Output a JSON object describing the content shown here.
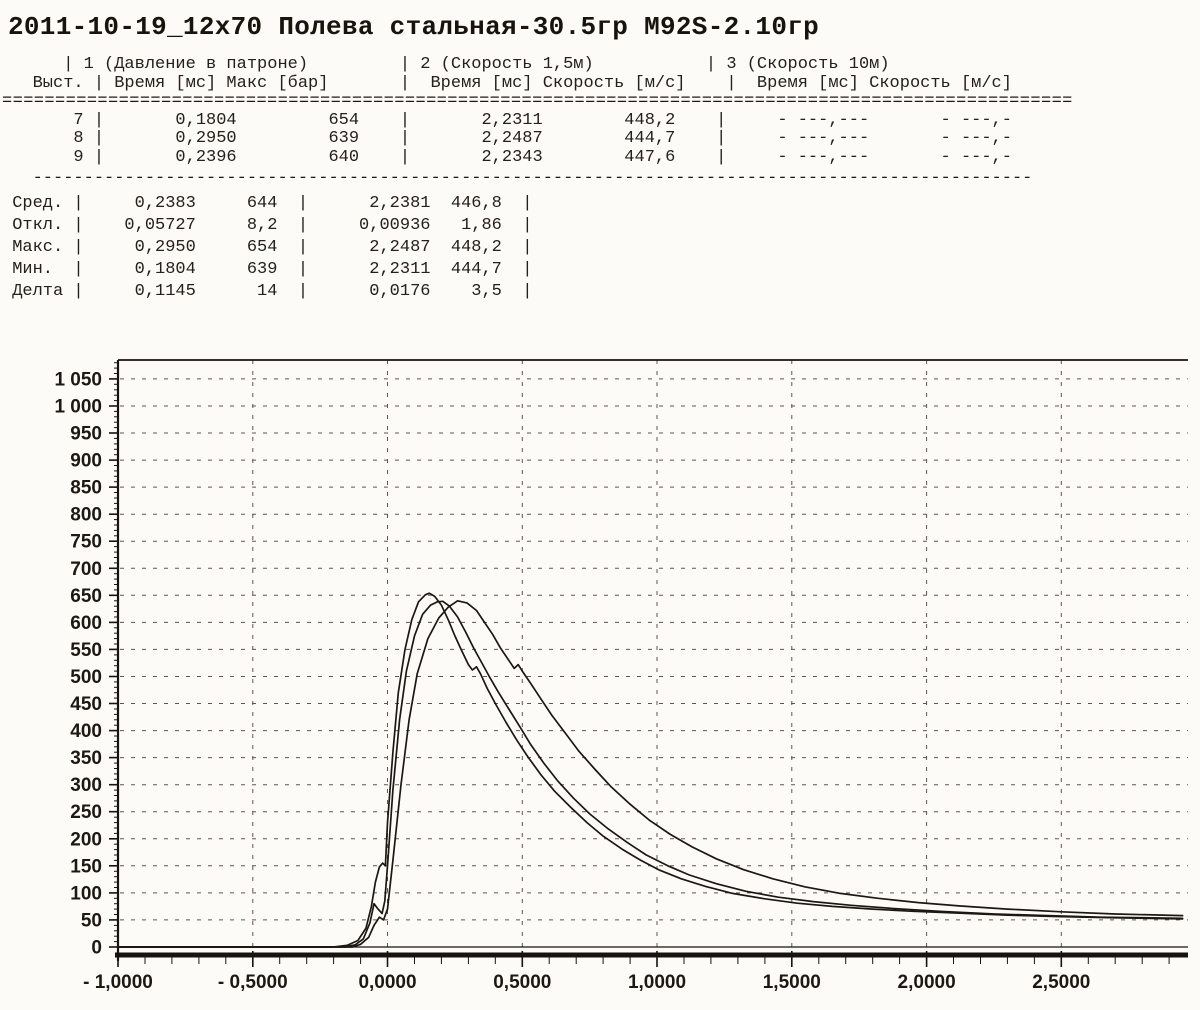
{
  "page": {
    "title": "2011-10-19_12x70 Полева стальная-30.5гр M92S-2.10гр"
  },
  "table": {
    "groups": [
      "1 (Давление в патроне)",
      "2 (Скорость 1,5м)",
      "3 (Скорость 10м)"
    ],
    "columns": [
      "Выст.",
      "Время [мс]",
      "Макс [бар]",
      "Время [мс]",
      "Скорость [м/с]",
      "Время [мс]",
      "Скорость [м/с]"
    ],
    "rows": [
      {
        "shot": "7",
        "p_time": "0,1804",
        "p_max": "654",
        "v15_time": "2,2311",
        "v15": "448,2",
        "v10_time": "- ---,---",
        "v10": "- ---,-"
      },
      {
        "shot": "8",
        "p_time": "0,2950",
        "p_max": "639",
        "v15_time": "2,2487",
        "v15": "444,7",
        "v10_time": "- ---,---",
        "v10": "- ---,-"
      },
      {
        "shot": "9",
        "p_time": "0,2396",
        "p_max": "640",
        "v15_time": "2,2343",
        "v15": "447,6",
        "v10_time": "- ---,---",
        "v10": "- ---,-"
      }
    ],
    "stats": [
      {
        "label": "Сред.",
        "p_time": "0,2383",
        "p_max": "644",
        "v15_time": "2,2381",
        "v15": "446,8"
      },
      {
        "label": "Откл.",
        "p_time": "0,05727",
        "p_max": "8,2",
        "v15_time": "0,00936",
        "v15": "1,86"
      },
      {
        "label": "Макс.",
        "p_time": "0,2950",
        "p_max": "654",
        "v15_time": "2,2487",
        "v15": "448,2"
      },
      {
        "label": "Мин.",
        "p_time": "0,1804",
        "p_max": "639",
        "v15_time": "2,2311",
        "v15": "444,7"
      },
      {
        "label": "Делта",
        "p_time": "0,1145",
        "p_max": "14",
        "v15_time": "0,0176",
        "v15": "3,5"
      }
    ],
    "lines": [
      "      | 1 (Давление в патроне)         | 2 (Скорость 1,5м)           | 3 (Скорость 10м)",
      "   Выст. | Время [мс] Макс [бар]       |  Время [мс] Скорость [м/с]    |  Время [мс] Скорость [м/с]",
      "=====================================================================================================",
      "       7 |       0,1804         654    |       2,2311        448,2    |     - ---,---       - ---,-",
      "       8 |       0,2950         639    |       2,2487        444,7    |     - ---,---       - ---,-",
      "       9 |       0,2396         640    |       2,2343        447,6    |     - ---,---       - ---,-",
      "   --------------------------------------------------------------------------------------------------",
      " Сред. |     0,2383     644  |      2,2381  446,8  |",
      " Откл. |    0,05727     8,2  |     0,00936   1,86  |",
      " Макс. |     0,2950     654  |      2,2487  448,2  |",
      " Мин.  |     0,1804     639  |      2,2311  444,7  |",
      " Делта |     0,1145      14  |      0,0176    3,5  |"
    ]
  },
  "chart_data": {
    "type": "line",
    "title": "",
    "xlabel": "",
    "ylabel": "",
    "grid": true,
    "legend": false,
    "xlim": [
      -1.0,
      2.97
    ],
    "ylim": [
      0,
      1085
    ],
    "minor_x": 0.1,
    "minor_y": 10,
    "xticks": [
      {
        "v": -1.0,
        "label": "- 1,0000"
      },
      {
        "v": -0.5,
        "label": "- 0,5000"
      },
      {
        "v": 0.0,
        "label": "0,0000"
      },
      {
        "v": 0.5,
        "label": "0,5000"
      },
      {
        "v": 1.0,
        "label": "1,0000"
      },
      {
        "v": 1.5,
        "label": "1,5000"
      },
      {
        "v": 2.0,
        "label": "2,0000"
      },
      {
        "v": 2.5,
        "label": "2,5000"
      }
    ],
    "yticks": [
      {
        "v": 0,
        "label": "0"
      },
      {
        "v": 50,
        "label": "50"
      },
      {
        "v": 100,
        "label": "100"
      },
      {
        "v": 150,
        "label": "150"
      },
      {
        "v": 200,
        "label": "200"
      },
      {
        "v": 250,
        "label": "250"
      },
      {
        "v": 300,
        "label": "300"
      },
      {
        "v": 350,
        "label": "350"
      },
      {
        "v": 400,
        "label": "400"
      },
      {
        "v": 450,
        "label": "450"
      },
      {
        "v": 500,
        "label": "500"
      },
      {
        "v": 550,
        "label": "550"
      },
      {
        "v": 600,
        "label": "600"
      },
      {
        "v": 650,
        "label": "650"
      },
      {
        "v": 700,
        "label": "700"
      },
      {
        "v": 750,
        "label": "750"
      },
      {
        "v": 800,
        "label": "800"
      },
      {
        "v": 850,
        "label": "850"
      },
      {
        "v": 900,
        "label": "900"
      },
      {
        "v": 950,
        "label": "950"
      },
      {
        "v": 1000,
        "label": "1 000"
      },
      {
        "v": 1050,
        "label": "1 050"
      }
    ],
    "series": [
      {
        "name": "shot-7",
        "peak_bar": 654,
        "points": [
          [
            -1,
            0
          ],
          [
            -0.2,
            0
          ],
          [
            -0.15,
            3
          ],
          [
            -0.11,
            12
          ],
          [
            -0.08,
            35
          ],
          [
            -0.06,
            75
          ],
          [
            -0.045,
            120
          ],
          [
            -0.03,
            148
          ],
          [
            -0.018,
            155
          ],
          [
            -0.008,
            150
          ],
          [
            0,
            230
          ],
          [
            0.02,
            360
          ],
          [
            0.04,
            470
          ],
          [
            0.065,
            550
          ],
          [
            0.09,
            605
          ],
          [
            0.115,
            638
          ],
          [
            0.14,
            651
          ],
          [
            0.155,
            654
          ],
          [
            0.175,
            648
          ],
          [
            0.2,
            632
          ],
          [
            0.225,
            605
          ],
          [
            0.25,
            575
          ],
          [
            0.275,
            548
          ],
          [
            0.3,
            522
          ],
          [
            0.315,
            512
          ],
          [
            0.33,
            518
          ],
          [
            0.345,
            505
          ],
          [
            0.37,
            478
          ],
          [
            0.4,
            450
          ],
          [
            0.44,
            415
          ],
          [
            0.48,
            382
          ],
          [
            0.52,
            352
          ],
          [
            0.57,
            318
          ],
          [
            0.62,
            288
          ],
          [
            0.68,
            258
          ],
          [
            0.74,
            230
          ],
          [
            0.8,
            205
          ],
          [
            0.87,
            181
          ],
          [
            0.94,
            160
          ],
          [
            1.01,
            142
          ],
          [
            1.09,
            126
          ],
          [
            1.18,
            112
          ],
          [
            1.28,
            99
          ],
          [
            1.4,
            89
          ],
          [
            1.52,
            81
          ],
          [
            1.65,
            75
          ],
          [
            1.8,
            70
          ],
          [
            1.95,
            66
          ],
          [
            2.1,
            63
          ],
          [
            2.3,
            59
          ],
          [
            2.5,
            56
          ],
          [
            2.7,
            54
          ],
          [
            2.95,
            52
          ]
        ]
      },
      {
        "name": "shot-8",
        "peak_bar": 639,
        "points": [
          [
            -1,
            0
          ],
          [
            -0.16,
            0
          ],
          [
            -0.12,
            4
          ],
          [
            -0.09,
            15
          ],
          [
            -0.065,
            45
          ],
          [
            -0.05,
            80
          ],
          [
            -0.035,
            70
          ],
          [
            -0.02,
            62
          ],
          [
            -0.01,
            85
          ],
          [
            0,
            150
          ],
          [
            0.02,
            290
          ],
          [
            0.045,
            420
          ],
          [
            0.07,
            510
          ],
          [
            0.1,
            575
          ],
          [
            0.13,
            615
          ],
          [
            0.16,
            632
          ],
          [
            0.185,
            638
          ],
          [
            0.205,
            639
          ],
          [
            0.23,
            630
          ],
          [
            0.26,
            610
          ],
          [
            0.29,
            582
          ],
          [
            0.32,
            552
          ],
          [
            0.35,
            525
          ],
          [
            0.38,
            498
          ],
          [
            0.41,
            472
          ],
          [
            0.45,
            440
          ],
          [
            0.49,
            408
          ],
          [
            0.53,
            375
          ],
          [
            0.58,
            340
          ],
          [
            0.63,
            308
          ],
          [
            0.69,
            275
          ],
          [
            0.75,
            246
          ],
          [
            0.82,
            218
          ],
          [
            0.89,
            193
          ],
          [
            0.96,
            170
          ],
          [
            1.04,
            150
          ],
          [
            1.12,
            133
          ],
          [
            1.22,
            117
          ],
          [
            1.33,
            103
          ],
          [
            1.45,
            92
          ],
          [
            1.58,
            84
          ],
          [
            1.72,
            77
          ],
          [
            1.88,
            71
          ],
          [
            2.05,
            66
          ],
          [
            2.25,
            61
          ],
          [
            2.45,
            58
          ],
          [
            2.65,
            55
          ],
          [
            2.95,
            53
          ]
        ]
      },
      {
        "name": "shot-9",
        "peak_bar": 640,
        "points": [
          [
            -1,
            0
          ],
          [
            -0.13,
            0
          ],
          [
            -0.1,
            5
          ],
          [
            -0.07,
            18
          ],
          [
            -0.05,
            40
          ],
          [
            -0.03,
            55
          ],
          [
            -0.015,
            50
          ],
          [
            0,
            70
          ],
          [
            0.02,
            160
          ],
          [
            0.05,
            300
          ],
          [
            0.08,
            420
          ],
          [
            0.11,
            505
          ],
          [
            0.15,
            570
          ],
          [
            0.19,
            608
          ],
          [
            0.225,
            628
          ],
          [
            0.26,
            640
          ],
          [
            0.295,
            636
          ],
          [
            0.33,
            622
          ],
          [
            0.36,
            600
          ],
          [
            0.39,
            578
          ],
          [
            0.42,
            552
          ],
          [
            0.45,
            530
          ],
          [
            0.47,
            515
          ],
          [
            0.485,
            522
          ],
          [
            0.5,
            510
          ],
          [
            0.53,
            488
          ],
          [
            0.57,
            458
          ],
          [
            0.61,
            428
          ],
          [
            0.66,
            395
          ],
          [
            0.71,
            362
          ],
          [
            0.77,
            328
          ],
          [
            0.83,
            296
          ],
          [
            0.9,
            264
          ],
          [
            0.97,
            235
          ],
          [
            1.05,
            208
          ],
          [
            1.13,
            185
          ],
          [
            1.22,
            163
          ],
          [
            1.32,
            143
          ],
          [
            1.43,
            126
          ],
          [
            1.55,
            111
          ],
          [
            1.68,
            99
          ],
          [
            1.82,
            90
          ],
          [
            1.97,
            82
          ],
          [
            2.12,
            76
          ],
          [
            2.3,
            70
          ],
          [
            2.5,
            65
          ],
          [
            2.7,
            61
          ],
          [
            2.95,
            58
          ]
        ]
      }
    ]
  }
}
